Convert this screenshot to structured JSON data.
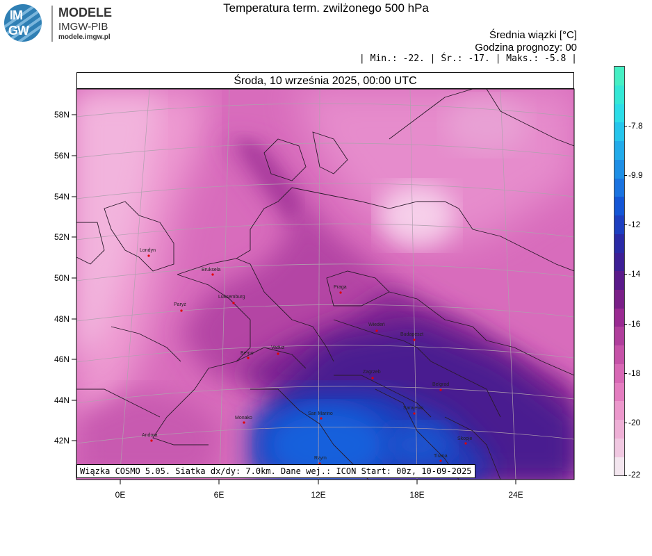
{
  "logo": {
    "badge_top": "IM",
    "badge_bottom": "GW",
    "line1": "MODELE",
    "line2": "IMGW-PIB",
    "line3": "modele.imgw.pl"
  },
  "title": "Temperatura term. zwilżonego 500 hPa",
  "info": {
    "line1": "Średnia wiązki [°C]",
    "line2": "Godzina prognozy: 00",
    "line3": "| Min.:    -22. | Śr.:    -17. | Maks.:    -5.8 |"
  },
  "map": {
    "header": "Środa, 10 września 2025, 00:00 UTC",
    "footer": "Wiązka COSMO 5.05. Siatka dx/dy: 7.0km. Dane wej.: ICON Start: 00z, 10-09-2025",
    "lat_labels": [
      "58N",
      "56N",
      "54N",
      "52N",
      "50N",
      "48N",
      "46N",
      "44N",
      "42N"
    ],
    "lon_labels": [
      "0E",
      "6E",
      "12E",
      "18E",
      "24E"
    ],
    "cities": [
      {
        "name": "Londyn"
      },
      {
        "name": "Bruksela"
      },
      {
        "name": "Paryż"
      },
      {
        "name": "Luksemburg"
      },
      {
        "name": "Praga"
      },
      {
        "name": "Wiedeń"
      },
      {
        "name": "Budapeszt"
      },
      {
        "name": "Berno"
      },
      {
        "name": "Vaduz"
      },
      {
        "name": "Zagrzeb"
      },
      {
        "name": "Belgrad"
      },
      {
        "name": "Monako"
      },
      {
        "name": "San Marino"
      },
      {
        "name": "Sarajewo"
      },
      {
        "name": "Andora"
      },
      {
        "name": "Skopje"
      },
      {
        "name": "Rzym"
      },
      {
        "name": "Tirana"
      }
    ]
  },
  "colorbar": {
    "labels": [
      "-7.8",
      "-9.9",
      "-12",
      "-14",
      "-16",
      "-18",
      "-20",
      "-22"
    ],
    "colors": [
      "#f3e6ef",
      "#f0c8e1",
      "#eeb0d6",
      "#ec98cc",
      "#e47dc0",
      "#d868b5",
      "#c652a8",
      "#b03e9c",
      "#9a2a92",
      "#7a1f88",
      "#5a1a8a",
      "#3d1f96",
      "#2a2aa6",
      "#1d3fc0",
      "#1456d6",
      "#1a73e0",
      "#1e8fe6",
      "#22abea",
      "#26c5ec",
      "#2cdde8",
      "#34e8d6",
      "#46efc4"
    ]
  }
}
